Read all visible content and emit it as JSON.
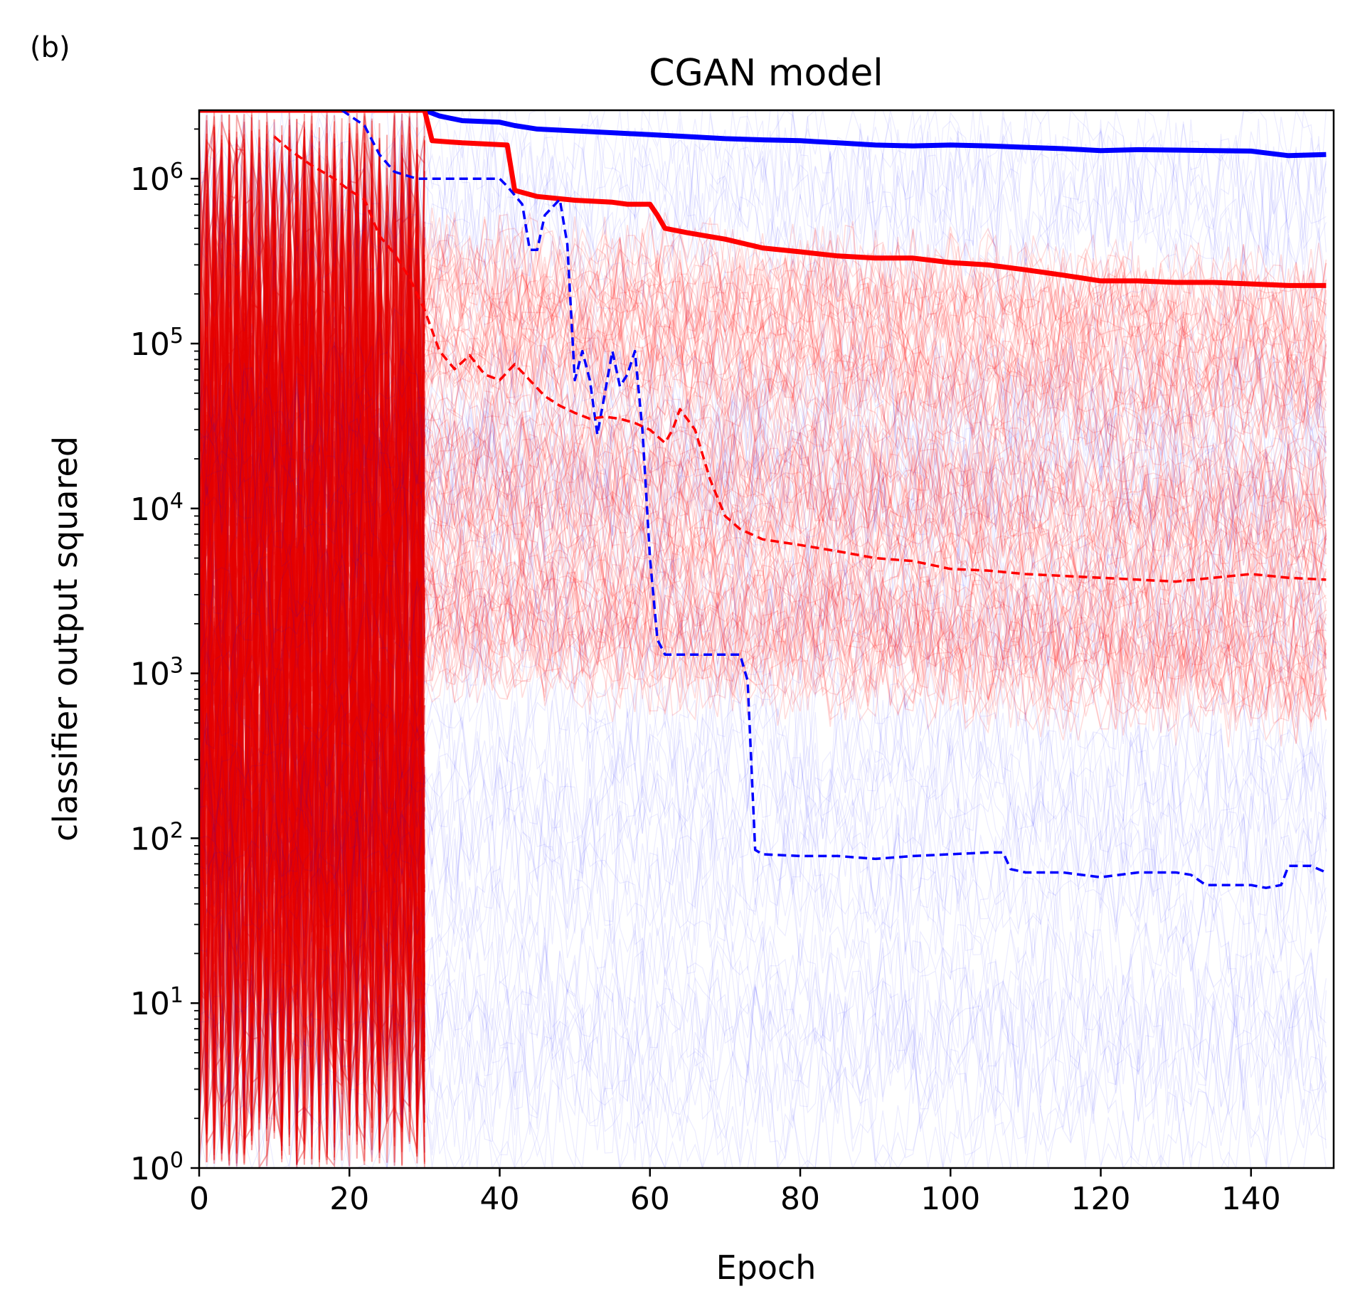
{
  "panel_label": "(b)",
  "chart_data": {
    "type": "line",
    "title": "CGAN model",
    "xlabel": "Epoch",
    "ylabel": "classifier output squared",
    "x_scale": "linear",
    "y_scale": "log",
    "xlim": [
      0,
      151
    ],
    "ylim": [
      1,
      2600000
    ],
    "x_ticks": [
      0,
      20,
      40,
      60,
      80,
      100,
      120,
      140
    ],
    "x_tick_labels": [
      "0",
      "20",
      "40",
      "60",
      "80",
      "100",
      "120",
      "140"
    ],
    "y_ticks": [
      1,
      10,
      100,
      1000,
      10000,
      100000,
      1000000
    ],
    "y_tick_labels": [
      {
        "base": "10",
        "exp": "0"
      },
      {
        "base": "10",
        "exp": "1"
      },
      {
        "base": "10",
        "exp": "2"
      },
      {
        "base": "10",
        "exp": "3"
      },
      {
        "base": "10",
        "exp": "4"
      },
      {
        "base": "10",
        "exp": "5"
      },
      {
        "base": "10",
        "exp": "6"
      }
    ],
    "grid": false,
    "legend": "none",
    "colors": {
      "red": "#ff0000",
      "blue": "#0000ff",
      "dense_red": "#e60000"
    },
    "background_traces": {
      "description_visible": false,
      "red_band": {
        "epochs": [
          0,
          30
        ],
        "y_range": [
          1,
          2600000
        ]
      },
      "red_cloud": {
        "epochs": [
          30,
          150
        ],
        "y_range": [
          1000,
          400000
        ]
      },
      "blue_sparse": {
        "epochs": [
          30,
          150
        ],
        "y_range": [
          1,
          2600000
        ]
      }
    },
    "series": [
      {
        "color": "#0000ff",
        "style": "solid",
        "x": [
          30,
          32,
          35,
          40,
          42,
          45,
          50,
          55,
          60,
          65,
          70,
          75,
          80,
          85,
          90,
          95,
          100,
          105,
          110,
          115,
          120,
          125,
          130,
          135,
          140,
          145,
          150
        ],
        "y": [
          2600000,
          2400000,
          2250000,
          2200000,
          2100000,
          2000000,
          1950000,
          1900000,
          1850000,
          1800000,
          1750000,
          1720000,
          1700000,
          1650000,
          1600000,
          1580000,
          1600000,
          1580000,
          1550000,
          1520000,
          1480000,
          1500000,
          1490000,
          1480000,
          1470000,
          1380000,
          1400000
        ]
      },
      {
        "color": "#ff0000",
        "style": "solid",
        "x": [
          0,
          30,
          31,
          35,
          41,
          42,
          45,
          50,
          55,
          57,
          60,
          61,
          62,
          65,
          70,
          75,
          80,
          85,
          90,
          95,
          100,
          105,
          110,
          115,
          120,
          125,
          130,
          135,
          140,
          145,
          150
        ],
        "y": [
          2600000,
          2600000,
          1700000,
          1650000,
          1600000,
          850000,
          780000,
          740000,
          720000,
          700000,
          700000,
          600000,
          500000,
          470000,
          430000,
          380000,
          360000,
          340000,
          330000,
          330000,
          310000,
          300000,
          280000,
          260000,
          240000,
          240000,
          235000,
          235000,
          230000,
          225000,
          225000
        ]
      },
      {
        "color": "#0000ff",
        "style": "dashed",
        "x": [
          19,
          22,
          24,
          26,
          29,
          35,
          40,
          41,
          43,
          44,
          45,
          46,
          48,
          49,
          50,
          51,
          52,
          53,
          54,
          55,
          56,
          57,
          58,
          59,
          60,
          61,
          62,
          65,
          70,
          72,
          73,
          74,
          75,
          80,
          85,
          90,
          95,
          100,
          105,
          107,
          108,
          110,
          115,
          120,
          125,
          130,
          132,
          134,
          135,
          140,
          142,
          144,
          145,
          148,
          150
        ],
        "y": [
          2600000,
          2100000,
          1400000,
          1100000,
          1000000,
          1000000,
          1000000,
          900000,
          700000,
          370000,
          370000,
          600000,
          750000,
          400000,
          60000,
          90000,
          60000,
          28000,
          50000,
          90000,
          55000,
          65000,
          90000,
          30000,
          5000,
          1600,
          1300,
          1300,
          1300,
          1300,
          900,
          85,
          80,
          78,
          78,
          75,
          78,
          80,
          82,
          82,
          65,
          62,
          62,
          58,
          62,
          62,
          60,
          52,
          52,
          52,
          50,
          52,
          68,
          68,
          62
        ]
      },
      {
        "color": "#ff0000",
        "style": "dashed",
        "x": [
          10,
          12,
          15,
          18,
          20,
          22,
          24,
          26,
          28,
          30,
          32,
          34,
          36,
          38,
          40,
          42,
          44,
          46,
          48,
          50,
          52,
          54,
          56,
          58,
          60,
          62,
          63,
          64,
          66,
          68,
          70,
          72,
          75,
          80,
          85,
          90,
          95,
          100,
          105,
          110,
          115,
          120,
          125,
          130,
          135,
          140,
          145,
          150
        ],
        "y": [
          1800000,
          1500000,
          1200000,
          1000000,
          850000,
          750000,
          450000,
          350000,
          250000,
          160000,
          90000,
          70000,
          85000,
          65000,
          60000,
          75000,
          60000,
          48000,
          42000,
          38000,
          35000,
          36000,
          35000,
          33000,
          30000,
          25000,
          30000,
          40000,
          30000,
          15000,
          9000,
          7500,
          6500,
          6000,
          5500,
          5000,
          4800,
          4300,
          4200,
          4000,
          3900,
          3800,
          3700,
          3600,
          3800,
          4000,
          3800,
          3700
        ]
      }
    ]
  }
}
